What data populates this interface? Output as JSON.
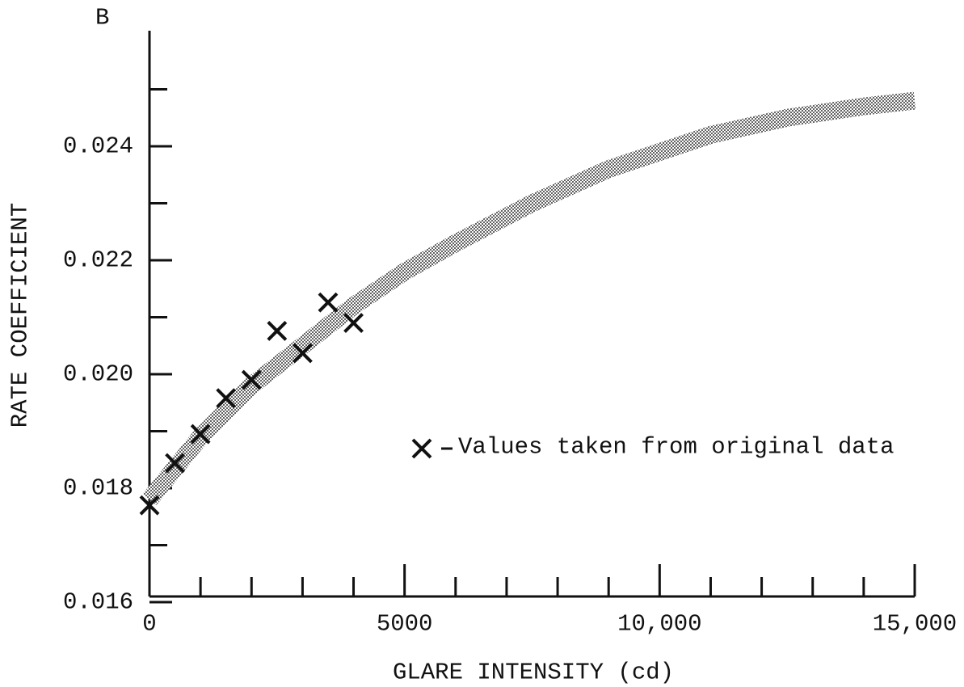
{
  "chart_data": {
    "type": "scatter",
    "panel_label": "B",
    "xlabel": "GLARE INTENSITY (cd)",
    "ylabel": "RATE COEFFICIENT",
    "xlim": [
      0,
      15000
    ],
    "ylim": [
      0.016,
      0.026
    ],
    "xticks": [
      0,
      5000,
      {
        "value": 10000,
        "label": "10,000"
      },
      {
        "value": 15000,
        "label": "15,000"
      }
    ],
    "xticks_minor": [
      1000,
      2000,
      3000,
      4000,
      6000,
      7000,
      8000,
      9000,
      11000,
      12000,
      13000,
      14000
    ],
    "yticks": [
      0.016,
      0.018,
      {
        "value": 0.02,
        "label": "0.020"
      },
      0.022,
      0.024
    ],
    "yticks_minor": [
      0.017,
      0.019,
      0.021,
      0.023,
      0.025
    ],
    "series": [
      {
        "name": "Values taken from original data",
        "color": "#111111",
        "x": [
          0,
          500,
          1000,
          1500,
          2000,
          2500,
          3000,
          3500,
          4000
        ],
        "values": [
          0.0177,
          0.01844,
          0.01895,
          0.01958,
          0.0199,
          0.02076,
          0.02037,
          0.02126,
          0.0209
        ]
      },
      {
        "type": "band",
        "color": "#888888",
        "x": [
          0,
          1000,
          2000,
          3000,
          4000,
          5000,
          6000,
          7500,
          9000,
          10000,
          11000,
          12500,
          14000,
          15000
        ],
        "values": [
          0.0178,
          0.0189,
          0.0198,
          0.0205,
          0.0212,
          0.0218,
          0.0223,
          0.023,
          0.0236,
          0.0239,
          0.0242,
          0.0245,
          0.0247,
          0.0248
        ]
      }
    ]
  }
}
